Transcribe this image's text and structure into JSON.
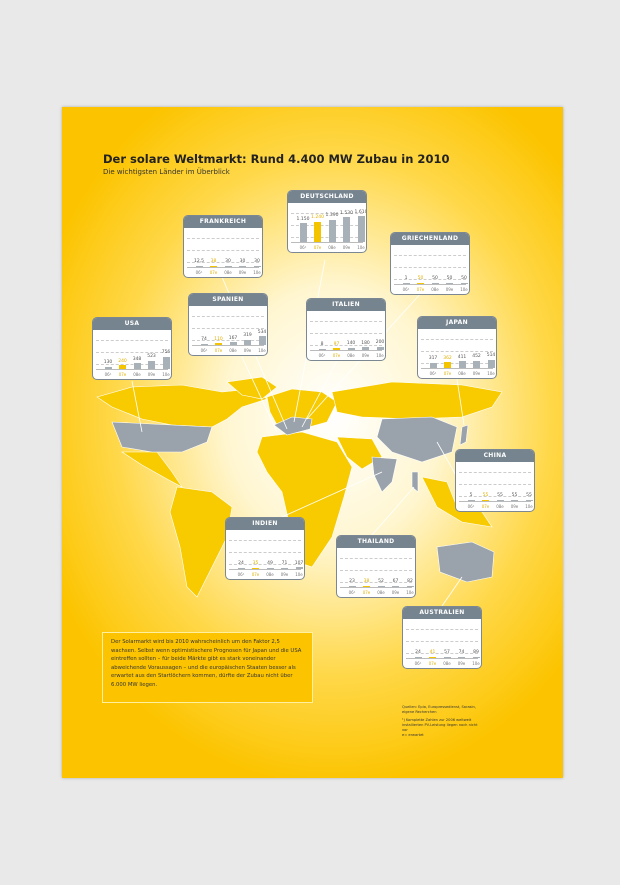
{
  "title": "Der solare Weltmarkt: Rund 4.400 MW Zubau in 2010",
  "subtitle": "Die wichtigsten Länder im Überblick",
  "colors": {
    "highlight": "#f4c400",
    "bar": "#a9b1b8",
    "header": "#76848f",
    "map_yellow": "#f7cb00",
    "map_gray": "#9aa3ab"
  },
  "chart_data": {
    "type": "bar",
    "unit": "MW",
    "categories": [
      "06¹",
      "07e",
      "08e",
      "09e",
      "10e"
    ],
    "highlight_category": "07e",
    "countries": [
      {
        "name": "FRANKREICH",
        "labels": [
          "12,5",
          "38",
          "30",
          "30",
          "30"
        ],
        "values": [
          12.5,
          38,
          30,
          30,
          30
        ]
      },
      {
        "name": "DEUTSCHLAND",
        "labels": [
          "1.150",
          "1.240",
          "1.390",
          "1.530",
          "1.610"
        ],
        "values": [
          1150,
          1240,
          1390,
          1530,
          1610
        ]
      },
      {
        "name": "GRIECHENLAND",
        "labels": [
          "1",
          "50",
          "50",
          "50",
          "50"
        ],
        "values": [
          1,
          50,
          50,
          50,
          50
        ]
      },
      {
        "name": "SPANIEN",
        "labels": [
          "74",
          "110",
          "167",
          "319",
          "534"
        ],
        "values": [
          74,
          110,
          167,
          319,
          534
        ]
      },
      {
        "name": "ITALIEN",
        "labels": [
          "8",
          "97",
          "140",
          "180",
          "200"
        ],
        "values": [
          8,
          97,
          140,
          180,
          200
        ]
      },
      {
        "name": "USA",
        "labels": [
          "130",
          "240",
          "348",
          "523",
          "756"
        ],
        "values": [
          130,
          240,
          348,
          523,
          756
        ]
      },
      {
        "name": "JAPAN",
        "labels": [
          "317",
          "362",
          "411",
          "452",
          "514"
        ],
        "values": [
          317,
          362,
          411,
          452,
          514
        ]
      },
      {
        "name": "CHINA",
        "labels": [
          "5",
          "55",
          "55",
          "55",
          "55"
        ],
        "values": [
          5,
          55,
          55,
          55,
          55
        ]
      },
      {
        "name": "INDIEN",
        "labels": [
          "24",
          "35",
          "49",
          "71",
          "107"
        ],
        "values": [
          24,
          35,
          49,
          71,
          107
        ]
      },
      {
        "name": "THAILAND",
        "labels": [
          "23",
          "38",
          "52",
          "67",
          "82"
        ],
        "values": [
          23,
          38,
          52,
          67,
          82
        ]
      },
      {
        "name": "AUSTRALIEN",
        "labels": [
          "24",
          "41",
          "57",
          "74",
          "89"
        ],
        "values": [
          24,
          41,
          57,
          74,
          89
        ]
      }
    ]
  },
  "note": "Der Solarmarkt wird bis 2010 wahrscheinlich um den Faktor 2,5 wachsen. Selbst wenn optimistischere Prognosen für Japan und die USA eintreffen sollten – für beide Märkte gibt es stark voneinander abweichende Voraussagen – und die europäischen Staaten besser als erwartet aus den Startlöchern kommen, dürfte der Zubau nicht über 6.000 MW liegen.",
  "sources": "Quellen: Epia, Europressedienst, Sarasin, eigene Recherchen",
  "footnote": "¹) Komplette Zahlen zur 2006 weltweit installierten PV-Leistung liegen noch nicht vor",
  "legend_e": "e= erwartet"
}
